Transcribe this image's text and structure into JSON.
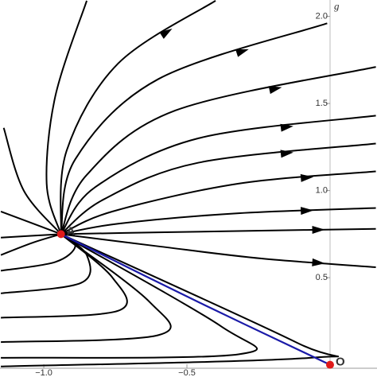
{
  "chart_data": {
    "type": "phase",
    "y_label": "g",
    "xlim": [
      -1.153,
      0.164
    ],
    "ylim": [
      -0.02,
      2.094
    ],
    "xticks": [
      {
        "value": -1,
        "label": "−1.0"
      },
      {
        "value": -0.5,
        "label": "−0.5"
      }
    ],
    "yticks": [
      0.5,
      {
        "value": 1,
        "label": "1.0"
      },
      1.5,
      {
        "value": 2,
        "label": "2.0"
      }
    ],
    "trajectory_color": "#000000",
    "trajectories": [
      {
        "x": [
          -0.94,
          -0.6,
          -0.24,
          0.16
        ],
        "y": [
          0.75,
          0.76,
          0.77,
          0.78
        ]
      },
      {
        "x": [
          -0.94,
          -0.74,
          -0.32,
          0.16
        ],
        "y": [
          0.75,
          0.81,
          0.87,
          0.9
        ]
      },
      {
        "x": [
          -0.94,
          -0.76,
          -0.32,
          0.16
        ],
        "y": [
          0.75,
          0.88,
          1.04,
          1.11
        ]
      },
      {
        "x": [
          -0.94,
          -0.79,
          -0.46,
          0.16
        ],
        "y": [
          0.75,
          0.95,
          1.16,
          1.27
        ]
      },
      {
        "x": [
          -0.94,
          -0.82,
          -0.46,
          0.16
        ],
        "y": [
          0.75,
          1.02,
          1.3,
          1.43
        ]
      },
      {
        "x": [
          -0.94,
          -0.85,
          -0.54,
          0.16
        ],
        "y": [
          0.75,
          1.09,
          1.46,
          1.71
        ]
      },
      {
        "x": [
          -0.94,
          -0.89,
          -0.6,
          -0.01
        ],
        "y": [
          0.75,
          1.18,
          1.64,
          1.96
        ]
      },
      {
        "x": [
          -0.94,
          -0.92,
          -0.74,
          -0.4
        ],
        "y": [
          0.75,
          1.23,
          1.73,
          2.09
        ]
      },
      {
        "x": [
          -0.94,
          -0.99,
          -0.96,
          -0.85
        ],
        "y": [
          0.75,
          1.04,
          1.54,
          2.09
        ]
      },
      {
        "x": [
          -0.94,
          -1.07,
          -1.14
        ],
        "y": [
          0.75,
          1.0,
          1.36
        ]
      },
      {
        "x": [
          -0.94,
          -0.6,
          -0.24,
          0.16
        ],
        "y": [
          0.75,
          0.68,
          0.61,
          0.56
        ]
      },
      {
        "x": [
          -1.15,
          -0.94
        ],
        "y": [
          0.88,
          0.75
        ]
      },
      {
        "x": [
          -1.15,
          -0.94
        ],
        "y": [
          0.73,
          0.75
        ]
      },
      {
        "x": [
          -1.15,
          -1.04,
          -0.94
        ],
        "y": [
          0.63,
          0.7,
          0.75
        ]
      },
      {
        "x": [
          -1.15,
          -0.96,
          -0.89,
          -0.94
        ],
        "y": [
          0.54,
          0.59,
          0.68,
          0.75
        ]
      },
      {
        "x": [
          -1.15,
          -0.87,
          -0.85,
          -0.94
        ],
        "y": [
          0.41,
          0.47,
          0.63,
          0.75
        ]
      },
      {
        "x": [
          -1.15,
          -0.74,
          -0.76,
          -0.94
        ],
        "y": [
          0.27,
          0.31,
          0.5,
          0.75
        ]
      },
      {
        "x": [
          -1.15,
          -0.6,
          -0.63,
          -0.94
        ],
        "y": [
          0.13,
          0.17,
          0.36,
          0.75
        ]
      },
      {
        "x": [
          -1.15,
          -0.32,
          -0.38,
          -0.94
        ],
        "y": [
          0.04,
          0.06,
          0.22,
          0.75
        ]
      },
      {
        "x": [
          -1.15,
          -0.07,
          -0.12,
          -0.94
        ],
        "y": [
          -0.01,
          0.04,
          0.13,
          0.75
        ]
      }
    ],
    "separatrix": {
      "color": "#1a1aa8",
      "x": [
        -0.94,
        -0.46,
        0
      ],
      "y": [
        0.75,
        0.36,
        0
      ]
    },
    "points": {
      "color": "#e01b1b",
      "labels": [
        "A",
        "O"
      ],
      "x": [
        -0.94,
        0
      ],
      "y": [
        0.75,
        0
      ]
    }
  }
}
